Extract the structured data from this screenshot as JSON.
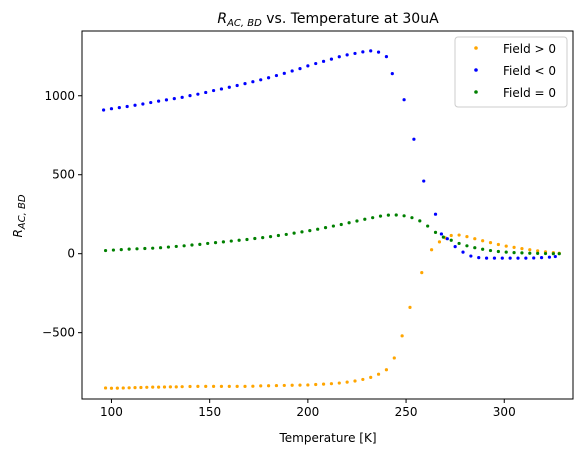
{
  "chart_data": {
    "type": "scatter",
    "title": {
      "main": "R",
      "sub": "AC, BD",
      "rest": " vs. Temperature at 30uA"
    },
    "xlabel": "Temperature [K]",
    "ylabel": {
      "main": "R",
      "sub": "AC, BD"
    },
    "xlim": [
      85,
      335
    ],
    "ylim": [
      -920,
      1410
    ],
    "xticks": [
      100,
      150,
      200,
      250,
      300
    ],
    "yticks": [
      -500,
      0,
      500,
      1000
    ],
    "ytick_labels": [
      "−500",
      "0",
      "500",
      "1000"
    ],
    "grid": false,
    "legend_position": "top-right",
    "series": [
      {
        "name": "Field > 0",
        "color": "#FFA500",
        "points": [
          [
            97,
            -850
          ],
          [
            100,
            -852
          ],
          [
            103,
            -851
          ],
          [
            106,
            -850
          ],
          [
            109,
            -849
          ],
          [
            112,
            -848
          ],
          [
            115,
            -847
          ],
          [
            118,
            -846
          ],
          [
            121,
            -845
          ],
          [
            124,
            -845
          ],
          [
            127,
            -844
          ],
          [
            130,
            -843
          ],
          [
            133,
            -843
          ],
          [
            136,
            -842
          ],
          [
            140,
            -841
          ],
          [
            144,
            -840
          ],
          [
            148,
            -840
          ],
          [
            152,
            -840
          ],
          [
            156,
            -840
          ],
          [
            160,
            -840
          ],
          [
            164,
            -840
          ],
          [
            168,
            -840
          ],
          [
            172,
            -839
          ],
          [
            176,
            -837
          ],
          [
            180,
            -836
          ],
          [
            184,
            -835
          ],
          [
            188,
            -834
          ],
          [
            192,
            -833
          ],
          [
            196,
            -832
          ],
          [
            200,
            -831
          ],
          [
            204,
            -828
          ],
          [
            208,
            -826
          ],
          [
            212,
            -823
          ],
          [
            216,
            -819
          ],
          [
            220,
            -813
          ],
          [
            224,
            -806
          ],
          [
            228,
            -796
          ],
          [
            232,
            -783
          ],
          [
            236,
            -763
          ],
          [
            240,
            -735
          ],
          [
            244,
            -660
          ],
          [
            248,
            -520
          ],
          [
            252,
            -340
          ],
          [
            258,
            -120
          ],
          [
            263,
            25
          ],
          [
            267,
            75
          ],
          [
            270,
            100
          ],
          [
            273,
            115
          ],
          [
            277,
            118
          ],
          [
            281,
            108
          ],
          [
            285,
            95
          ],
          [
            289,
            82
          ],
          [
            293,
            70
          ],
          [
            297,
            58
          ],
          [
            301,
            48
          ],
          [
            305,
            40
          ],
          [
            309,
            32
          ],
          [
            313,
            25
          ],
          [
            317,
            18
          ],
          [
            321,
            12
          ],
          [
            325,
            7
          ],
          [
            328,
            3
          ]
        ]
      },
      {
        "name": "Field < 0",
        "color": "#0000FF",
        "points": [
          [
            96,
            910
          ],
          [
            100,
            918
          ],
          [
            104,
            925
          ],
          [
            108,
            932
          ],
          [
            112,
            940
          ],
          [
            116,
            948
          ],
          [
            120,
            957
          ],
          [
            124,
            966
          ],
          [
            128,
            974
          ],
          [
            132,
            982
          ],
          [
            136,
            990
          ],
          [
            140,
            1001
          ],
          [
            144,
            1010
          ],
          [
            148,
            1021
          ],
          [
            152,
            1033
          ],
          [
            156,
            1043
          ],
          [
            160,
            1054
          ],
          [
            164,
            1065
          ],
          [
            168,
            1077
          ],
          [
            172,
            1089
          ],
          [
            176,
            1101
          ],
          [
            180,
            1114
          ],
          [
            184,
            1128
          ],
          [
            188,
            1142
          ],
          [
            192,
            1157
          ],
          [
            196,
            1172
          ],
          [
            200,
            1189
          ],
          [
            204,
            1204
          ],
          [
            208,
            1218
          ],
          [
            212,
            1232
          ],
          [
            216,
            1247
          ],
          [
            220,
            1259
          ],
          [
            224,
            1268
          ],
          [
            228,
            1278
          ],
          [
            232,
            1284
          ],
          [
            236,
            1276
          ],
          [
            240,
            1248
          ],
          [
            243,
            1140
          ],
          [
            249,
            975
          ],
          [
            254,
            725
          ],
          [
            259,
            460
          ],
          [
            265,
            250
          ],
          [
            268,
            125
          ],
          [
            271,
            95
          ],
          [
            275,
            45
          ],
          [
            279,
            10
          ],
          [
            283,
            -15
          ],
          [
            287,
            -25
          ],
          [
            291,
            -28
          ],
          [
            295,
            -28
          ],
          [
            299,
            -28
          ],
          [
            303,
            -28
          ],
          [
            307,
            -28
          ],
          [
            311,
            -28
          ],
          [
            315,
            -27
          ],
          [
            319,
            -25
          ],
          [
            323,
            -22
          ],
          [
            326,
            -18
          ]
        ]
      },
      {
        "name": "Field = 0",
        "color": "#008000",
        "points": [
          [
            97,
            20
          ],
          [
            101,
            23
          ],
          [
            105,
            26
          ],
          [
            109,
            29
          ],
          [
            113,
            31
          ],
          [
            117,
            33
          ],
          [
            121,
            35
          ],
          [
            125,
            38
          ],
          [
            129,
            42
          ],
          [
            133,
            46
          ],
          [
            137,
            50
          ],
          [
            141,
            55
          ],
          [
            145,
            59
          ],
          [
            149,
            65
          ],
          [
            153,
            70
          ],
          [
            157,
            75
          ],
          [
            161,
            80
          ],
          [
            165,
            85
          ],
          [
            169,
            90
          ],
          [
            173,
            96
          ],
          [
            177,
            102
          ],
          [
            181,
            108
          ],
          [
            185,
            115
          ],
          [
            189,
            122
          ],
          [
            193,
            130
          ],
          [
            197,
            138
          ],
          [
            201,
            146
          ],
          [
            205,
            155
          ],
          [
            209,
            165
          ],
          [
            213,
            175
          ],
          [
            217,
            185
          ],
          [
            221,
            196
          ],
          [
            225,
            207
          ],
          [
            229,
            218
          ],
          [
            233,
            228
          ],
          [
            237,
            238
          ],
          [
            241,
            244
          ],
          [
            245,
            245
          ],
          [
            249,
            240
          ],
          [
            253,
            228
          ],
          [
            257,
            208
          ],
          [
            261,
            175
          ],
          [
            265,
            135
          ],
          [
            269,
            105
          ],
          [
            273,
            85
          ],
          [
            277,
            65
          ],
          [
            281,
            50
          ],
          [
            285,
            38
          ],
          [
            289,
            28
          ],
          [
            293,
            20
          ],
          [
            297,
            14
          ],
          [
            301,
            10
          ],
          [
            305,
            7
          ],
          [
            309,
            5
          ],
          [
            313,
            3
          ],
          [
            317,
            2
          ],
          [
            321,
            1
          ],
          [
            325,
            0
          ],
          [
            328,
            0
          ]
        ]
      }
    ]
  }
}
